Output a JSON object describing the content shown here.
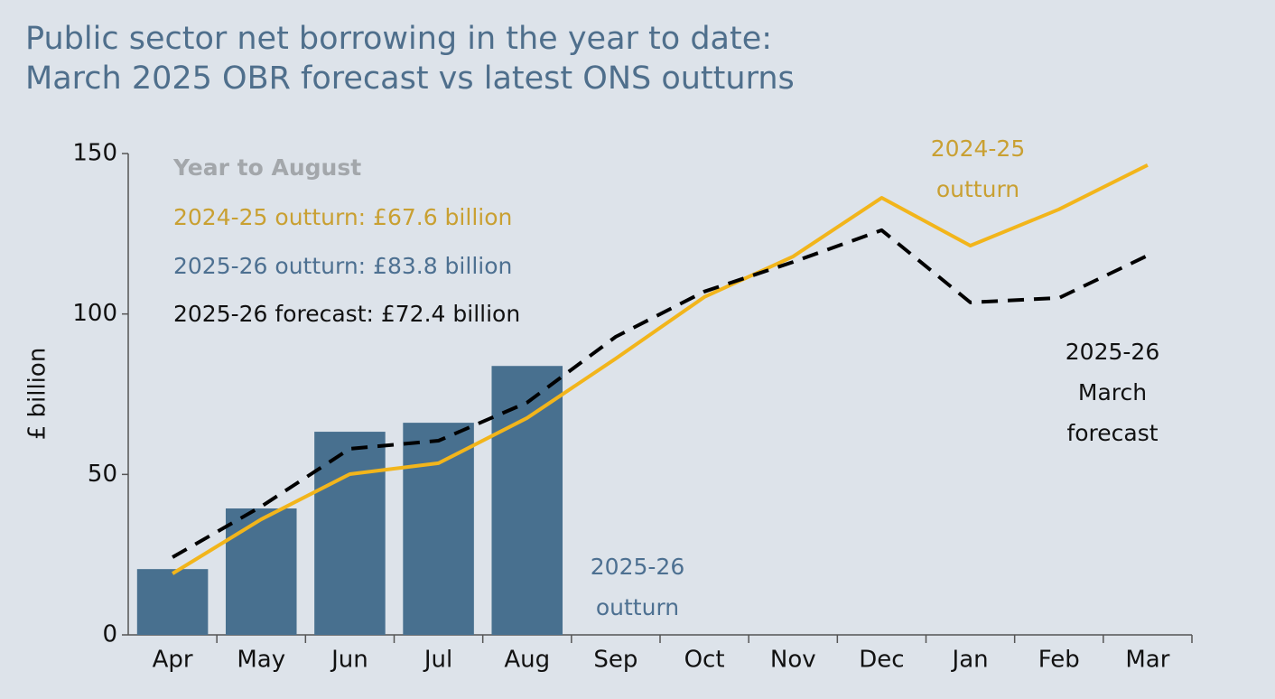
{
  "chart_data": {
    "type": "combo",
    "title": [
      "Public sector net borrowing in the year to date:",
      "March 2025 OBR forecast vs latest ONS outturns"
    ],
    "y_label": "£ billion",
    "categories": [
      "Apr",
      "May",
      "Jun",
      "Jul",
      "Aug",
      "Sep",
      "Oct",
      "Nov",
      "Dec",
      "Jan",
      "Feb",
      "Mar"
    ],
    "series": [
      {
        "name": "2025-26 outturn",
        "type": "bar",
        "color": "#48708f",
        "values": [
          20.5,
          39.4,
          63.3,
          66.1,
          83.8,
          null,
          null,
          null,
          null,
          null,
          null,
          null
        ]
      },
      {
        "name": "2024-25 outturn",
        "type": "line",
        "color": "#f2b51b",
        "values": [
          19.1,
          36,
          50.1,
          53.5,
          67.6,
          86.1,
          105.3,
          117.9,
          136.2,
          121.3,
          132.6,
          146.4
        ]
      },
      {
        "name": "2025-26 March forecast",
        "type": "line",
        "dashed": true,
        "color": "#000000",
        "values": [
          24.2,
          40,
          58,
          60.5,
          72.4,
          92.9,
          107,
          116.2,
          126.1,
          103.6,
          105,
          118.2
        ]
      }
    ],
    "ylim": [
      0,
      150
    ],
    "yticks": [
      0,
      50,
      100,
      150
    ],
    "grid": false,
    "annotations": [
      {
        "lines": [
          "Year to August"
        ],
        "color": "#a3a7ab",
        "bold": true
      },
      {
        "lines": [
          "2024-25 outturn: £67.6 billion"
        ],
        "color": "#c9a032"
      },
      {
        "lines": [
          "2025-26 outturn: £83.8 billion"
        ],
        "color": "#4d7091"
      },
      {
        "lines": [
          "2025-26 forecast: £72.4 billion"
        ],
        "color": "#111111"
      },
      {
        "lines": [
          "2024-25",
          "outturn"
        ],
        "color": "#c9a032"
      },
      {
        "lines": [
          "2025-26",
          "outturn"
        ],
        "color": "#4d7091"
      },
      {
        "lines": [
          "2025-26",
          "March",
          "forecast"
        ],
        "color": "#111111"
      }
    ]
  }
}
